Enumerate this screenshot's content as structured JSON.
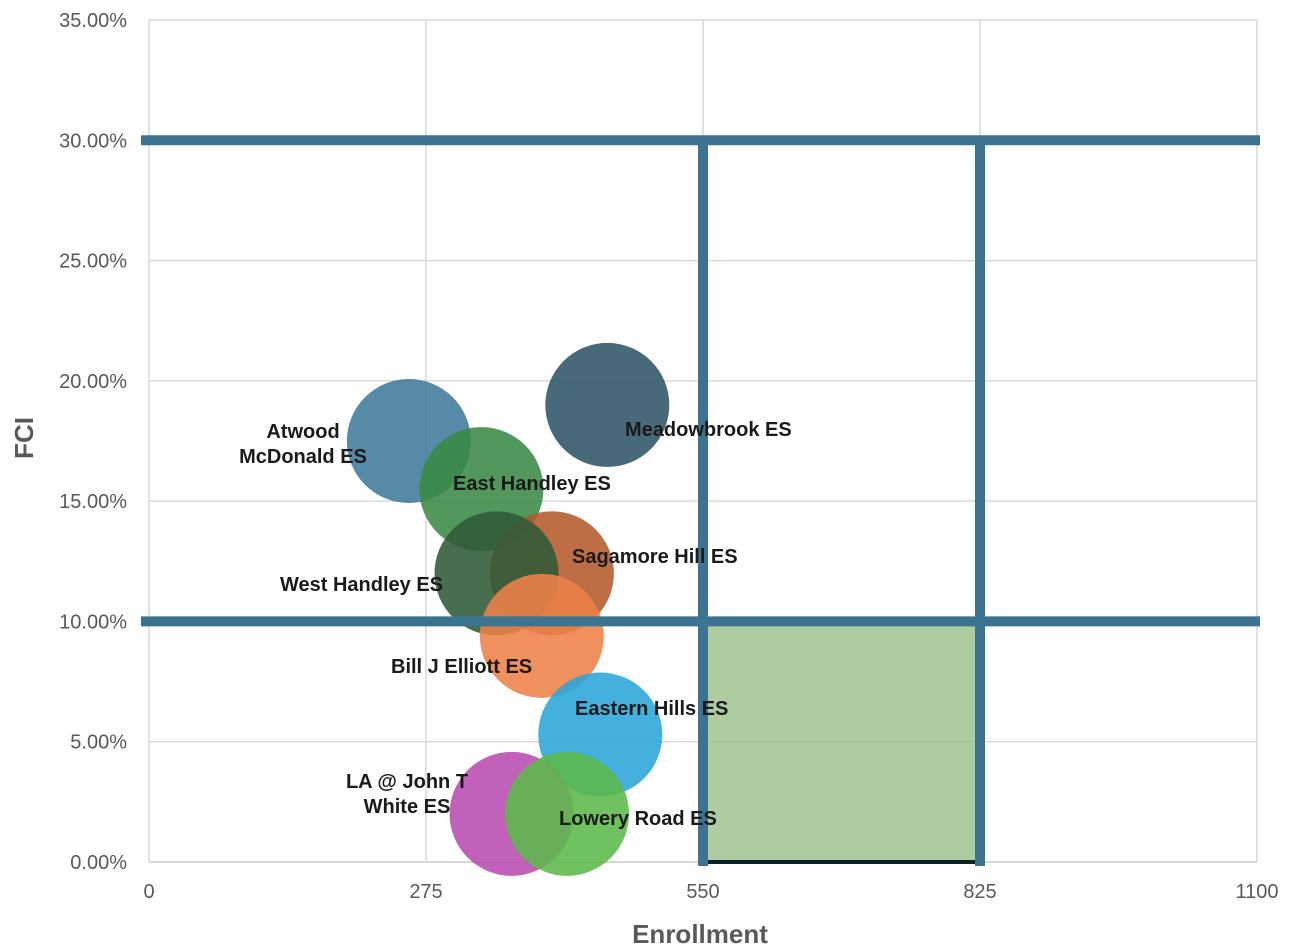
{
  "chart_data": {
    "type": "bubble",
    "xlabel": "Enrollment",
    "ylabel": "FCI",
    "xlim": [
      0,
      1100
    ],
    "ylim": [
      0,
      0.35
    ],
    "x_ticks": [
      "0",
      "275",
      "550",
      "825",
      "1100"
    ],
    "y_ticks": [
      "0.00%",
      "5.00%",
      "10.00%",
      "15.00%",
      "20.00%",
      "25.00%",
      "30.00%",
      "35.00%"
    ],
    "grid": true,
    "legend": "none",
    "bubbles": [
      {
        "label": "Atwood McDonald ES",
        "label_lines": [
          "Atwood",
          "McDonald ES"
        ],
        "x": 258,
        "y": 0.175,
        "color": "#3f7a9a"
      },
      {
        "label": "Meadowbrook ES",
        "label_lines": [
          "Meadowbrook ES"
        ],
        "x": 455,
        "y": 0.19,
        "color": "#2f5468"
      },
      {
        "label": "East Handley ES",
        "label_lines": [
          "East Handley ES"
        ],
        "x": 330,
        "y": 0.155,
        "color": "#3a8a45"
      },
      {
        "label": "Sagamore Hill ES",
        "label_lines": [
          "Sagamore Hill ES"
        ],
        "x": 400,
        "y": 0.12,
        "color": "#b45a2a"
      },
      {
        "label": "West Handley ES",
        "label_lines": [
          "West Handley ES"
        ],
        "x": 345,
        "y": 0.12,
        "color": "#2f5a38"
      },
      {
        "label": "Bill J Elliott ES",
        "label_lines": [
          "Bill J Elliott ES"
        ],
        "x": 390,
        "y": 0.094,
        "color": "#ee8148"
      },
      {
        "label": "Eastern Hills ES",
        "label_lines": [
          "Eastern Hills ES"
        ],
        "x": 448,
        "y": 0.053,
        "color": "#29a5d9"
      },
      {
        "label": "LA @ John T White ES",
        "label_lines": [
          "LA @ John T",
          "White ES"
        ],
        "x": 360,
        "y": 0.02,
        "color": "#b84bb0"
      },
      {
        "label": "Lowery Road ES",
        "label_lines": [
          "Lowery Road ES"
        ],
        "x": 415,
        "y": 0.02,
        "color": "#5cb84a"
      }
    ],
    "reference_lines": {
      "horizontal_y": [
        0.3,
        0.1
      ],
      "vertical_x": [
        550,
        825
      ],
      "color": "#3b7391"
    },
    "highlight_region": {
      "x": [
        550,
        825
      ],
      "y": [
        0,
        0.1
      ],
      "color": "#93bb7f"
    }
  }
}
